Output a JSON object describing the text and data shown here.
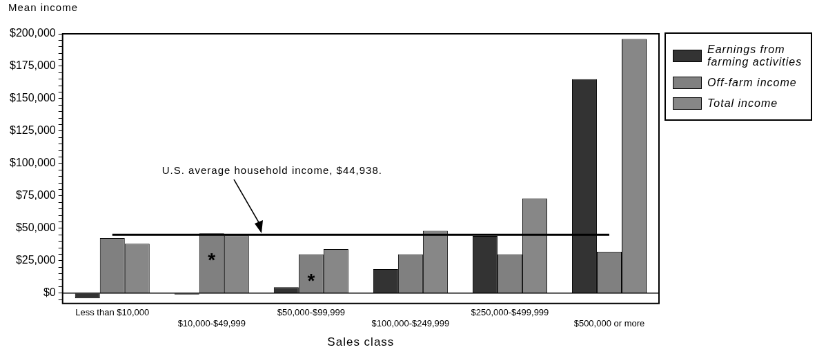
{
  "chart_data": {
    "type": "bar",
    "xlabel": "Sales class",
    "ylabel": "Mean income",
    "categories": [
      "Less than $10,000",
      "$10,000-$49,999",
      "$50,000-$99,999",
      "$100,000-$249,999",
      "$250,000-$499,999",
      "$500,000 or more"
    ],
    "series": [
      {
        "name": "Earnings from farming activities",
        "color": "#333333",
        "values": [
          -4000,
          -1000,
          4500,
          18500,
          44000,
          165000
        ]
      },
      {
        "name": "Off-farm income",
        "color": "#808080",
        "values": [
          42500,
          46000,
          30000,
          30000,
          30000,
          32000
        ]
      },
      {
        "name": "Total income",
        "color": "#878787",
        "values": [
          38000,
          44500,
          34000,
          48000,
          73000,
          196000
        ]
      }
    ],
    "ylim": [
      -8000,
      200000
    ],
    "yticks": [
      {
        "value": -5000,
        "label": null
      },
      {
        "value": 0,
        "label": "$0"
      },
      {
        "value": 5000,
        "label": null
      },
      {
        "value": 10000,
        "label": null
      },
      {
        "value": 15000,
        "label": null
      },
      {
        "value": 20000,
        "label": null
      },
      {
        "value": 25000,
        "label": "$25,000"
      },
      {
        "value": 30000,
        "label": null
      },
      {
        "value": 35000,
        "label": null
      },
      {
        "value": 40000,
        "label": null
      },
      {
        "value": 45000,
        "label": null
      },
      {
        "value": 50000,
        "label": "$50,000"
      },
      {
        "value": 55000,
        "label": null
      },
      {
        "value": 60000,
        "label": null
      },
      {
        "value": 65000,
        "label": null
      },
      {
        "value": 70000,
        "label": null
      },
      {
        "value": 75000,
        "label": "$75,000"
      },
      {
        "value": 80000,
        "label": null
      },
      {
        "value": 85000,
        "label": null
      },
      {
        "value": 90000,
        "label": null
      },
      {
        "value": 95000,
        "label": null
      },
      {
        "value": 100000,
        "label": "$100,000"
      },
      {
        "value": 105000,
        "label": null
      },
      {
        "value": 110000,
        "label": null
      },
      {
        "value": 115000,
        "label": null
      },
      {
        "value": 120000,
        "label": null
      },
      {
        "value": 125000,
        "label": "$125,000"
      },
      {
        "value": 130000,
        "label": null
      },
      {
        "value": 135000,
        "label": null
      },
      {
        "value": 140000,
        "label": null
      },
      {
        "value": 145000,
        "label": null
      },
      {
        "value": 150000,
        "label": "$150,000"
      },
      {
        "value": 155000,
        "label": null
      },
      {
        "value": 160000,
        "label": null
      },
      {
        "value": 165000,
        "label": null
      },
      {
        "value": 170000,
        "label": null
      },
      {
        "value": 175000,
        "label": "$175,000"
      },
      {
        "value": 180000,
        "label": null
      },
      {
        "value": 185000,
        "label": null
      },
      {
        "value": 190000,
        "label": null
      },
      {
        "value": 195000,
        "label": null
      },
      {
        "value": 200000,
        "label": "$200,000"
      }
    ],
    "ref_lines": [
      {
        "axis": "y",
        "value": 44938,
        "color": "#000000"
      }
    ],
    "annotations": [
      "U.S. average household income, $44,938.",
      {
        "text": "*",
        "x": "$10,000-$49,999",
        "y": 46000
      },
      {
        "text": "*",
        "x": "$50,000-$99,999",
        "y": 30000
      }
    ],
    "grid": false,
    "legend": "right"
  }
}
